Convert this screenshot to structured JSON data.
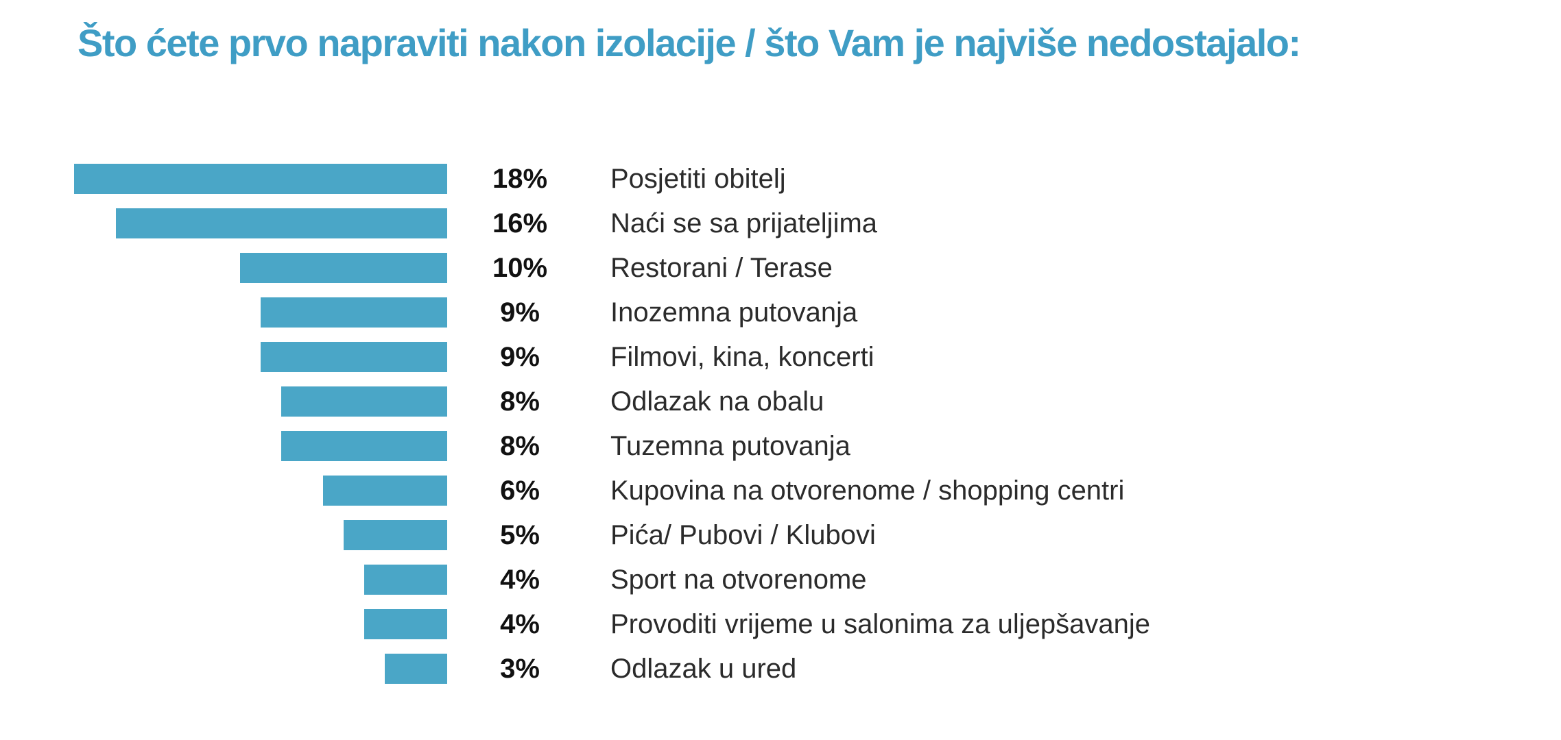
{
  "title": {
    "text": "Što ćete prvo napraviti nakon izolacije / što Vam je najviše nedostajalo:"
  },
  "colors": {
    "background": "#FFFFFF",
    "title": "#3F9DC5",
    "bar": "#4AA6C7",
    "value_text": "#111111",
    "label_text": "#2B2B2B"
  },
  "chart_data": {
    "type": "bar",
    "orientation": "horizontal",
    "bar_alignment": "right",
    "title": "Što ćete prvo napraviti nakon izolacije / što Vam je najviše nedostajalo:",
    "categories": [
      "Posjetiti obitelj",
      "Naći se sa prijateljima",
      "Restorani / Terase",
      "Inozemna putovanja",
      "Filmovi, kina, koncerti",
      "Odlazak na obalu",
      "Tuzemna putovanja",
      "Kupovina na otvorenome / shopping centri",
      "Pića/ Pubovi / Klubovi",
      "Sport na otvorenome",
      "Provoditi vrijeme u salonima za uljepšavanje",
      "Odlazak u ured"
    ],
    "values": [
      18,
      16,
      10,
      9,
      9,
      8,
      8,
      6,
      5,
      4,
      4,
      3
    ],
    "value_labels": [
      "18%",
      "16%",
      "10%",
      "9%",
      "9%",
      "8%",
      "8%",
      "6%",
      "5%",
      "4%",
      "4%",
      "3%"
    ],
    "unit": "%",
    "xlim": [
      0,
      18
    ],
    "grid": false,
    "legend": "none",
    "axis_labels": "none"
  }
}
